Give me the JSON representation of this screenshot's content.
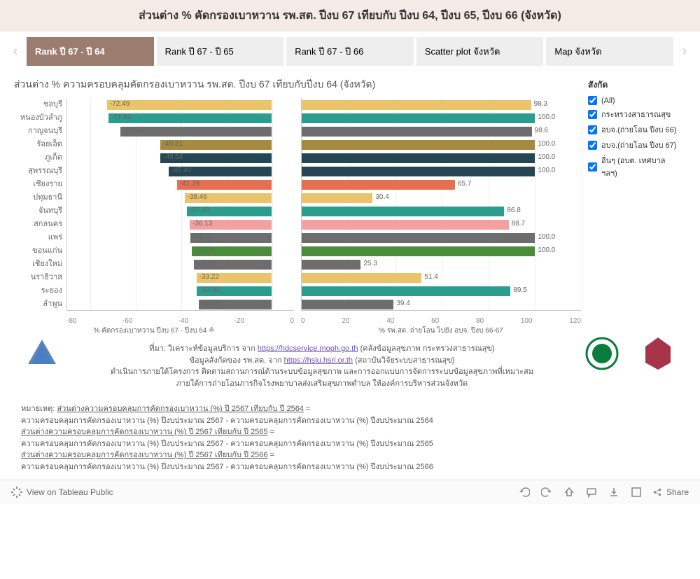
{
  "header": {
    "title": "ส่วนต่าง % คัดกรองเบาหวาน รพ.สต. ปีงบ 67 เทียบกับ ปีงบ 64, ปีงบ 65, ปีงบ 66 (จังหวัด)"
  },
  "tabs": [
    {
      "label": "Rank ปี 67 - ปี 64",
      "active": true
    },
    {
      "label": "Rank ปี 67 - ปี 65",
      "active": false
    },
    {
      "label": "Rank ปี 67 - ปี 66",
      "active": false
    },
    {
      "label": "Scatter plot จังหวัด",
      "active": false
    },
    {
      "label": "Map จังหวัด",
      "active": false
    }
  ],
  "subtitle": "ส่วนต่าง % ความครอบคลุมคัดกรองเบาหวาน รพ.สต. ปีงบ 67 เทียบกับปีงบ 64 (จังหวัด)",
  "chart_left": {
    "type": "bar-horizontal",
    "x_title": "% คัดกรองเบาหวาน ปีงบ 67 - ปีงบ 64 ≛",
    "xlim": [
      -90,
      10
    ],
    "xticks": [
      -80,
      -60,
      -40,
      -20,
      0
    ],
    "categories": [
      "ชลบุรี",
      "หนองบัวลำภู",
      "กาญจนบุรี",
      "ร้อยเอ็ด",
      "ภูเก็ต",
      "สุพรรณบุรี",
      "เชียงราย",
      "ปทุมธานี",
      "จันทบุรี",
      "สกลนคร",
      "แพร่",
      "ขอนแก่น",
      "เชียงใหม่",
      "นราธิวาส",
      "ระยอง",
      "ลำพูน"
    ],
    "values": [
      -72.49,
      -71.86,
      -66.55,
      -49.21,
      -49.04,
      -45.4,
      -41.79,
      -38.46,
      -37.29,
      -36.13,
      -35.8,
      -35.29,
      -34.22,
      -33.22,
      -32.93,
      -32.22
    ],
    "colors": [
      "#e9c46a",
      "#2a9d8f",
      "#6d6d6d",
      "#a68a3f",
      "#264653",
      "#264653",
      "#e76f51",
      "#e9c46a",
      "#2a9d8f",
      "#f4a0a0",
      "#6d6d6d",
      "#4a8c3a",
      "#6d6d6d",
      "#e9c46a",
      "#2a9d8f",
      "#6d6d6d"
    ]
  },
  "chart_right": {
    "type": "bar-horizontal",
    "x_title": "% รพ.สต. ถ่ายโอน ไปยัง อบจ. ปีงบ 66-67",
    "xlim": [
      0,
      120
    ],
    "xticks": [
      0,
      20,
      40,
      60,
      80,
      100,
      120
    ],
    "values": [
      98.3,
      100.0,
      98.6,
      100.0,
      100.0,
      100.0,
      65.7,
      30.4,
      86.8,
      88.7,
      100.0,
      100.0,
      25.3,
      51.4,
      89.5,
      39.4
    ],
    "colors": [
      "#e9c46a",
      "#2a9d8f",
      "#6d6d6d",
      "#a68a3f",
      "#264653",
      "#264653",
      "#e76f51",
      "#e9c46a",
      "#2a9d8f",
      "#f4a0a0",
      "#6d6d6d",
      "#4a8c3a",
      "#6d6d6d",
      "#e9c46a",
      "#2a9d8f",
      "#6d6d6d"
    ]
  },
  "legend": {
    "title": "สังกัด",
    "items": [
      {
        "label": "(All)",
        "checked": true
      },
      {
        "label": "กระทรวงสาธารณสุข",
        "checked": true
      },
      {
        "label": "อบจ.(ถ่ายโอน ปีงบ 66)",
        "checked": true
      },
      {
        "label": "อบจ.(ถ่ายโอน ปีงบ 67)",
        "checked": true
      },
      {
        "label": "อื่นๆ (อบต. เทศบาล ฯลฯ)",
        "checked": true
      }
    ]
  },
  "footer": {
    "source_line1_a": "ที่มา: วิเคราะห์ข้อมูลบริการ จาก ",
    "source_link1": "https://hdcservice.moph.go.th",
    "source_line1_b": " (คลังข้อมูลสุขภาพ กระทรวงสาธารณสุข)",
    "source_line2_a": "ข้อมูลสังกัดของ รพ.สต. จาก ",
    "source_link2": "https://hsiu.hsri.or.th",
    "source_line2_b": " (สถาบันวิจัยระบบสาธารณสุข)",
    "line3": "ดำเนินการภายใต้โครงการ ติดตามสถานการณ์ด้านระบบข้อมูลสุขภาพ และการออกแบบการจัดการระบบข้อมูลสุขภาพที่เหมาะสม",
    "line4": "ภายใต้การถ่ายโอนภารกิจโรงพยาบาลส่งเสริมสุขภาพตำบล ให้องค์การบริหารส่วนจังหวัด",
    "notes_label": "หมายเหตุ: ",
    "note1_title": "ส่วนต่างความครอบคลุมการคัดกรองเบาหวาน (%) ปี 2567 เทียบกับ ปี 2564",
    "note1_eq": " =",
    "note1_body": "ความครอบคลุมการคัดกรองเบาหวาน (%) ปีงบประมาณ 2567 - ความครอบคลุมการคัดกรองเบาหวาน (%) ปีงบประมาณ 2564",
    "note2_title": "ส่วนต่างความครอบคลุมการคัดกรองเบาหวาน (%) ปี 2567 เทียบกับ ปี 2565",
    "note2_eq": " =",
    "note2_body": "ความครอบคลุมการคัดกรองเบาหวาน (%) ปีงบประมาณ 2567 - ความครอบคลุมการคัดกรองเบาหวาน (%) ปีงบประมาณ 2565",
    "note3_title": "ส่วนต่างความครอบคลุมการคัดกรองเบาหวาน (%) ปี 2567 เทียบกับ ปี 2566",
    "note3_eq": " =",
    "note3_body": "ความครอบคลุมการคัดกรองเบาหวาน (%) ปีงบประมาณ 2567 - ความครอบคลุมการคัดกรองเบาหวาน (%) ปีงบประมาณ 2566"
  },
  "bottom": {
    "view_label": "View on Tableau Public",
    "share_label": "Share"
  }
}
